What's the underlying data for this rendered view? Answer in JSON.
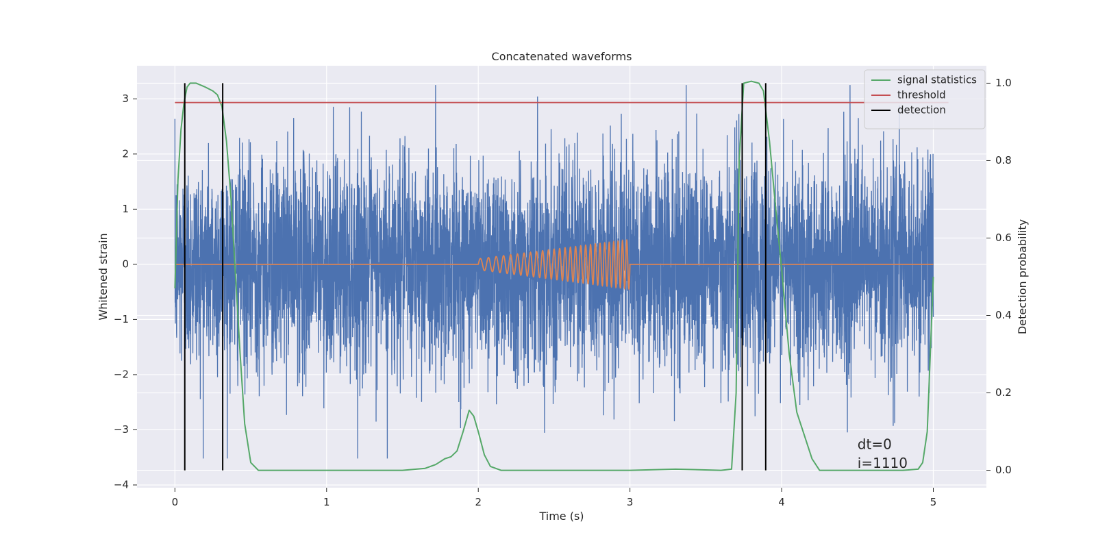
{
  "chart_data": {
    "type": "line",
    "title": "Concatenated waveforms",
    "xlabel": "Time (s)",
    "ylabel_left": "Whitened strain",
    "ylabel_right": "Detection probability",
    "xlim": [
      -0.25,
      5.35
    ],
    "ylim_left": [
      -4.05,
      3.6
    ],
    "ylim_right": [
      -0.045,
      1.045
    ],
    "grid": true,
    "legend_position": "top-right",
    "x_ticks": [
      0,
      1,
      2,
      3,
      4,
      5
    ],
    "x_tick_labels": [
      "0",
      "1",
      "2",
      "3",
      "4",
      "5"
    ],
    "y_left_ticks": [
      -4,
      -3,
      -2,
      -1,
      0,
      1,
      2,
      3
    ],
    "y_left_tick_labels": [
      "−4",
      "−3",
      "−2",
      "−1",
      "0",
      "1",
      "2",
      "3"
    ],
    "y_right_ticks": [
      0.0,
      0.2,
      0.4,
      0.6,
      0.8,
      1.0
    ],
    "y_right_tick_labels": [
      "0.0",
      "0.2",
      "0.4",
      "0.6",
      "0.8",
      "1.0"
    ],
    "series": [
      {
        "name": "",
        "axis": "left",
        "kind": "noise",
        "color": "#4c72b0",
        "x_range": [
          0,
          5
        ],
        "std": 0.95,
        "peak_max": 3.25,
        "peak_min": -3.52
      },
      {
        "name": "",
        "axis": "left",
        "kind": "chirp",
        "color": "#dd8452",
        "x_range": [
          0,
          5
        ],
        "chirp_start": 2.0,
        "chirp_end": 3.0,
        "amp_start": 0.1,
        "amp_end": 0.45
      },
      {
        "name": "signal statistics",
        "axis": "right",
        "color": "#55a868",
        "x": [
          0.0,
          0.02,
          0.04,
          0.06,
          0.08,
          0.1,
          0.14,
          0.2,
          0.25,
          0.28,
          0.31,
          0.34,
          0.37,
          0.4,
          0.43,
          0.46,
          0.5,
          0.55,
          1.0,
          1.5,
          1.65,
          1.72,
          1.78,
          1.82,
          1.86,
          1.9,
          1.94,
          1.97,
          2.0,
          2.04,
          2.08,
          2.15,
          2.3,
          3.0,
          3.3,
          3.6,
          3.67,
          3.7,
          3.72,
          3.75,
          3.8,
          3.85,
          3.88,
          3.92,
          3.96,
          4.0,
          4.05,
          4.1,
          4.15,
          4.2,
          4.25,
          4.3,
          4.8,
          4.9,
          4.93,
          4.96,
          4.98,
          5.0
        ],
        "y": [
          0.47,
          0.75,
          0.88,
          0.95,
          0.99,
          1.0,
          1.0,
          0.99,
          0.98,
          0.97,
          0.94,
          0.85,
          0.7,
          0.5,
          0.3,
          0.12,
          0.02,
          0.0,
          0.0,
          0.0,
          0.005,
          0.015,
          0.03,
          0.035,
          0.05,
          0.1,
          0.155,
          0.14,
          0.1,
          0.04,
          0.01,
          0.0,
          0.0,
          0.0,
          0.003,
          0.0,
          0.003,
          0.2,
          0.8,
          1.0,
          1.005,
          1.0,
          0.98,
          0.85,
          0.68,
          0.52,
          0.3,
          0.15,
          0.09,
          0.03,
          0.0,
          0.0,
          0.0,
          0.003,
          0.02,
          0.1,
          0.3,
          0.5
        ]
      },
      {
        "name": "threshold",
        "axis": "right",
        "color": "#c44e52",
        "x": [
          0,
          5.1
        ],
        "y": [
          0.95,
          0.95
        ]
      },
      {
        "name": "detection",
        "axis": "right",
        "color": "#000000",
        "vlines": [
          0.065,
          0.315,
          3.74,
          3.895
        ],
        "y_range": [
          0.0,
          1.0
        ]
      }
    ],
    "annotations": [
      {
        "text": "dt=0",
        "x": 4.5,
        "y": -3.28
      },
      {
        "text": "i=1110",
        "x": 4.5,
        "y": -3.62
      }
    ]
  }
}
